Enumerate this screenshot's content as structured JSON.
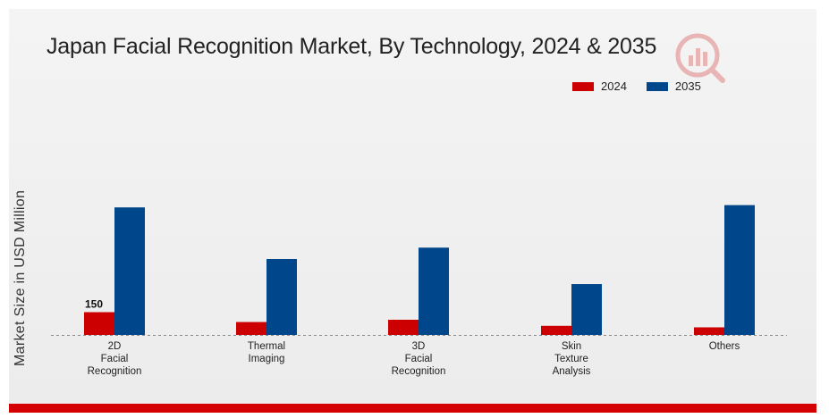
{
  "chart_data": {
    "type": "bar",
    "title": "Japan Facial Recognition Market, By Technology, 2024 & 2035",
    "xlabel": "",
    "ylabel": "Market Size in USD Million",
    "categories": [
      [
        "2D",
        "Facial",
        "Recognition"
      ],
      [
        "Thermal",
        "Imaging"
      ],
      [
        "3D",
        "Facial",
        "Recognition"
      ],
      [
        "Skin",
        "Texture",
        "Analysis"
      ],
      [
        "Others"
      ]
    ],
    "series": [
      {
        "name": "2024",
        "color": "#cc0000",
        "values": [
          150,
          85,
          100,
          60,
          50
        ]
      },
      {
        "name": "2035",
        "color": "#00468b",
        "values": [
          840,
          500,
          575,
          335,
          855
        ]
      }
    ],
    "data_labels": [
      {
        "series": 0,
        "category": 0,
        "text": "150"
      }
    ],
    "ylim": [
      0,
      1000
    ],
    "grid": false,
    "legend": "top-right"
  }
}
